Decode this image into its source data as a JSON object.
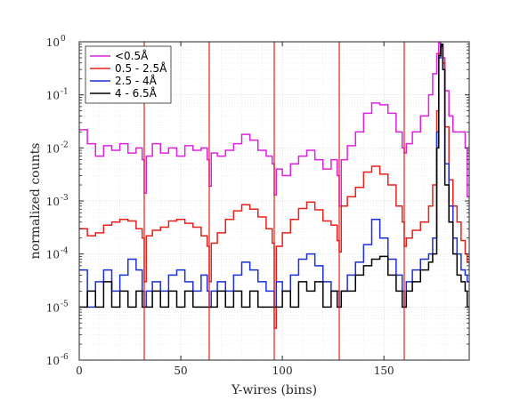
{
  "chart_data": {
    "type": "line",
    "step": true,
    "xlabel": "Y-wires (bins)",
    "ylabel": "normalized counts",
    "xlim": [
      0,
      192
    ],
    "ylim": [
      1e-06,
      1
    ],
    "yscale": "log",
    "grid": true,
    "legend_placement": "top-left",
    "xticks": [
      0,
      50,
      100,
      150
    ],
    "yticks": [
      {
        "value": 1e-06,
        "base": "10",
        "exp": "-6"
      },
      {
        "value": 1e-05,
        "base": "10",
        "exp": "-5"
      },
      {
        "value": 0.0001,
        "base": "10",
        "exp": "-4"
      },
      {
        "value": 0.001,
        "base": "10",
        "exp": "-3"
      },
      {
        "value": 0.01,
        "base": "10",
        "exp": "-2"
      },
      {
        "value": 0.1,
        "base": "10",
        "exp": "-1"
      },
      {
        "value": 1,
        "base": "10",
        "exp": "0"
      }
    ],
    "vlines": [
      32,
      64,
      96,
      128,
      160
    ],
    "vline_color": "#e8201a",
    "series": [
      {
        "name": "<0.5Å",
        "color": "#e020e0",
        "x": [
          0,
          4,
          8,
          12,
          16,
          20,
          24,
          28,
          31,
          32,
          33,
          36,
          40,
          44,
          48,
          52,
          56,
          60,
          63,
          64,
          65,
          68,
          72,
          76,
          80,
          84,
          88,
          92,
          95,
          96,
          97,
          100,
          104,
          108,
          112,
          116,
          120,
          124,
          127,
          128,
          129,
          132,
          136,
          140,
          144,
          148,
          152,
          156,
          159,
          160,
          161,
          164,
          168,
          172,
          174,
          176,
          177,
          178,
          179,
          180,
          182,
          184,
          186,
          188,
          190,
          191
        ],
        "values": [
          0.022,
          0.012,
          0.007,
          0.011,
          0.009,
          0.012,
          0.008,
          0.01,
          0.006,
          0.0014,
          0.007,
          0.012,
          0.008,
          0.01,
          0.007,
          0.011,
          0.009,
          0.01,
          0.006,
          0.0019,
          0.008,
          0.007,
          0.009,
          0.012,
          0.018,
          0.014,
          0.009,
          0.007,
          0.005,
          0.0013,
          0.004,
          0.003,
          0.005,
          0.007,
          0.009,
          0.006,
          0.004,
          0.006,
          0.003,
          0.0008,
          0.006,
          0.011,
          0.02,
          0.045,
          0.07,
          0.065,
          0.045,
          0.02,
          0.01,
          0.008,
          0.012,
          0.02,
          0.04,
          0.1,
          0.25,
          0.6,
          0.95,
          0.9,
          0.5,
          0.12,
          0.04,
          0.02,
          0.02,
          0.02,
          0.01,
          0.0012
        ]
      },
      {
        "name": "0.5 - 2.5Å",
        "color": "#e8201a",
        "x": [
          0,
          4,
          8,
          12,
          16,
          20,
          24,
          28,
          31,
          32,
          33,
          36,
          40,
          44,
          48,
          52,
          56,
          60,
          63,
          64,
          65,
          68,
          72,
          76,
          80,
          84,
          88,
          92,
          95,
          96,
          97,
          100,
          104,
          108,
          112,
          116,
          120,
          124,
          127,
          128,
          129,
          132,
          136,
          140,
          144,
          148,
          152,
          156,
          159,
          160,
          161,
          164,
          168,
          172,
          174,
          176,
          177,
          178,
          179,
          180,
          182,
          184,
          186,
          188,
          190,
          191
        ],
        "values": [
          0.0003,
          0.00022,
          0.00025,
          0.00035,
          0.0004,
          0.00045,
          0.00042,
          0.0003,
          0.0002,
          3e-05,
          0.00022,
          0.00028,
          0.00032,
          0.00042,
          0.00045,
          0.00038,
          0.00032,
          0.00022,
          0.00014,
          3e-05,
          0.00016,
          0.00025,
          0.00045,
          0.00065,
          0.00085,
          0.0007,
          0.0005,
          0.0003,
          0.00016,
          4e-06,
          0.00014,
          0.00025,
          0.00045,
          0.00072,
          0.00095,
          0.00068,
          0.00042,
          0.00035,
          0.00018,
          0.00011,
          0.0008,
          0.0012,
          0.0018,
          0.0035,
          0.0045,
          0.0032,
          0.002,
          0.0008,
          0.0004,
          0.00014,
          0.0002,
          0.00028,
          0.0004,
          0.0008,
          0.002,
          0.05,
          0.6,
          0.8,
          0.4,
          0.025,
          0.0025,
          0.0008,
          0.0004,
          0.00018,
          0.0001,
          7e-05
        ]
      },
      {
        "name": "2.5 - 4Å",
        "color": "#1a2fd8",
        "x": [
          0,
          4,
          8,
          12,
          16,
          20,
          24,
          28,
          31,
          32,
          33,
          36,
          40,
          44,
          48,
          52,
          56,
          60,
          63,
          64,
          65,
          68,
          72,
          76,
          80,
          84,
          88,
          92,
          95,
          96,
          97,
          100,
          104,
          108,
          112,
          116,
          120,
          124,
          127,
          128,
          129,
          132,
          136,
          140,
          144,
          148,
          152,
          156,
          159,
          160,
          161,
          164,
          168,
          172,
          174,
          176,
          177,
          178,
          179,
          180,
          182,
          184,
          186,
          188,
          190,
          191
        ],
        "values": [
          5e-05,
          1e-05,
          3e-05,
          5e-05,
          2e-05,
          4e-05,
          8e-05,
          5e-05,
          2e-05,
          1e-05,
          2e-05,
          3e-05,
          2e-05,
          4e-05,
          5e-05,
          3e-05,
          2e-05,
          4e-05,
          2e-05,
          1e-05,
          2e-05,
          3e-05,
          2e-05,
          4e-05,
          7e-05,
          5e-05,
          3e-05,
          2e-05,
          2e-05,
          1e-05,
          3e-05,
          2e-05,
          4e-05,
          8e-05,
          0.0001,
          6e-05,
          3e-05,
          2e-05,
          2e-05,
          1e-05,
          2e-05,
          4e-05,
          7e-05,
          0.00015,
          0.00045,
          0.0002,
          8e-05,
          4e-05,
          2e-05,
          1e-05,
          3e-05,
          5e-05,
          8e-05,
          0.0001,
          0.0002,
          0.02,
          0.5,
          0.85,
          0.3,
          0.005,
          0.0008,
          0.0002,
          0.0001,
          5e-05,
          4e-05,
          3e-05
        ]
      },
      {
        "name": "4 - 6.5Å",
        "color": "#000000",
        "x": [
          0,
          4,
          8,
          12,
          16,
          20,
          24,
          28,
          31,
          32,
          33,
          36,
          40,
          44,
          48,
          52,
          56,
          60,
          63,
          64,
          65,
          68,
          72,
          76,
          80,
          84,
          88,
          92,
          95,
          96,
          97,
          100,
          104,
          108,
          112,
          116,
          120,
          124,
          127,
          128,
          129,
          132,
          136,
          140,
          144,
          148,
          152,
          156,
          159,
          160,
          161,
          164,
          168,
          172,
          174,
          176,
          177,
          178,
          179,
          180,
          182,
          184,
          186,
          188,
          190,
          191
        ],
        "values": [
          1e-05,
          2e-05,
          1e-05,
          3e-05,
          1e-05,
          2e-05,
          1e-05,
          2e-05,
          1e-05,
          1e-05,
          1e-05,
          2e-05,
          1e-05,
          2e-05,
          1e-05,
          2e-05,
          1e-05,
          1e-05,
          1e-05,
          1e-05,
          1e-05,
          2e-05,
          1e-05,
          2e-05,
          1e-05,
          2e-05,
          1e-05,
          1e-05,
          1e-05,
          1e-05,
          1e-05,
          2e-05,
          1e-05,
          3e-05,
          2e-05,
          3e-05,
          1e-05,
          2e-05,
          1e-05,
          1e-05,
          2e-05,
          2e-05,
          4e-05,
          6e-05,
          8e-05,
          9e-05,
          4e-05,
          2e-05,
          1e-05,
          1e-05,
          2e-05,
          3e-05,
          5e-05,
          7e-05,
          0.0001,
          0.01,
          0.55,
          0.9,
          0.3,
          0.002,
          0.0004,
          0.0001,
          4e-05,
          3e-05,
          2e-05,
          1e-05
        ]
      }
    ]
  }
}
